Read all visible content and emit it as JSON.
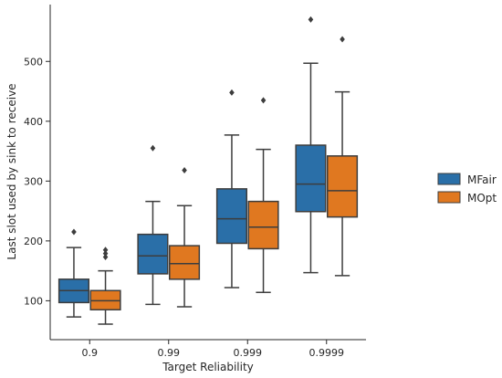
{
  "chart_data": {
    "type": "boxplot",
    "title": "",
    "xlabel": "Target Reliability",
    "ylabel": "Last slot used by sink to receive",
    "categories": [
      "0.9",
      "0.99",
      "0.999",
      "0.9999"
    ],
    "ylim": [
      35,
      595
    ],
    "yticks": [
      100,
      200,
      300,
      400,
      500
    ],
    "legend_position": "right",
    "series": [
      {
        "name": "MFair",
        "color": "#2a6fa8",
        "boxes": [
          {
            "whislo": 73,
            "q1": 97,
            "med": 117,
            "q3": 136,
            "whishi": 189,
            "fliers": [
              215
            ]
          },
          {
            "whislo": 94,
            "q1": 145,
            "med": 175,
            "q3": 211,
            "whishi": 266,
            "fliers": [
              355
            ]
          },
          {
            "whislo": 122,
            "q1": 196,
            "med": 237,
            "q3": 287,
            "whishi": 377,
            "fliers": [
              448
            ]
          },
          {
            "whislo": 147,
            "q1": 249,
            "med": 295,
            "q3": 360,
            "whishi": 497,
            "fliers": [
              570
            ]
          }
        ]
      },
      {
        "name": "MOpt",
        "color": "#e07820",
        "boxes": [
          {
            "whislo": 61,
            "q1": 85,
            "med": 100,
            "q3": 117,
            "whishi": 150,
            "fliers": [
              173,
              179,
              185
            ]
          },
          {
            "whislo": 90,
            "q1": 136,
            "med": 162,
            "q3": 192,
            "whishi": 259,
            "fliers": [
              318
            ]
          },
          {
            "whislo": 114,
            "q1": 187,
            "med": 223,
            "q3": 266,
            "whishi": 353,
            "fliers": [
              435
            ]
          },
          {
            "whislo": 142,
            "q1": 240,
            "med": 284,
            "q3": 342,
            "whishi": 449,
            "fliers": [
              537
            ]
          }
        ]
      }
    ]
  }
}
